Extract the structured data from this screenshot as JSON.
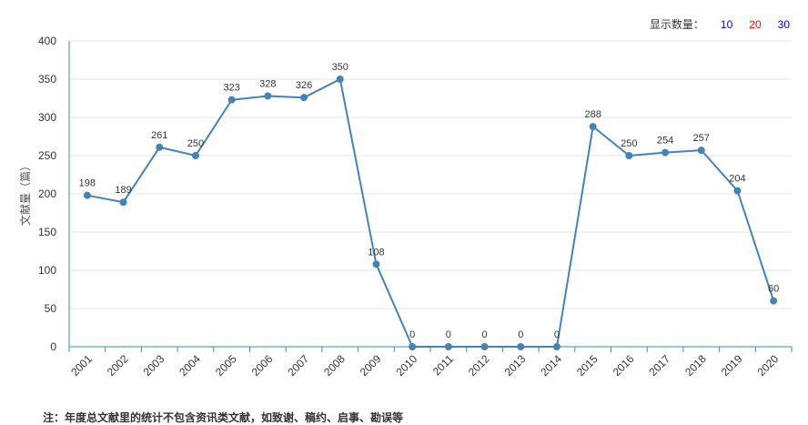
{
  "display_count": {
    "label": "显示数量：",
    "options": [
      {
        "label": "10",
        "color": "#0000ff"
      },
      {
        "label": "20",
        "color": "#ff0000"
      },
      {
        "label": "30",
        "color": "#0000cc"
      }
    ]
  },
  "footnote": "注：年度总文献里的统计不包含资讯类文献，如致谢、稿约、启事、勘误等",
  "colors": {
    "line": "#4682b4",
    "axis": "#3a8fb7",
    "grid": "#e6e6e6"
  },
  "chart_data": {
    "type": "line",
    "title": "",
    "xlabel": "",
    "ylabel": "文献量（篇）",
    "ylim": [
      0,
      400
    ],
    "yticks": [
      0,
      50,
      100,
      150,
      200,
      250,
      300,
      350,
      400
    ],
    "grid": true,
    "categories": [
      "2001",
      "2002",
      "2003",
      "2004",
      "2005",
      "2006",
      "2007",
      "2008",
      "2009",
      "2010",
      "2011",
      "2012",
      "2013",
      "2014",
      "2015",
      "2016",
      "2017",
      "2018",
      "2019",
      "2020"
    ],
    "series": [
      {
        "values": [
          198,
          189,
          261,
          250,
          323,
          328,
          326,
          350,
          108,
          0,
          0,
          0,
          0,
          0,
          288,
          250,
          254,
          257,
          204,
          60
        ]
      }
    ]
  }
}
